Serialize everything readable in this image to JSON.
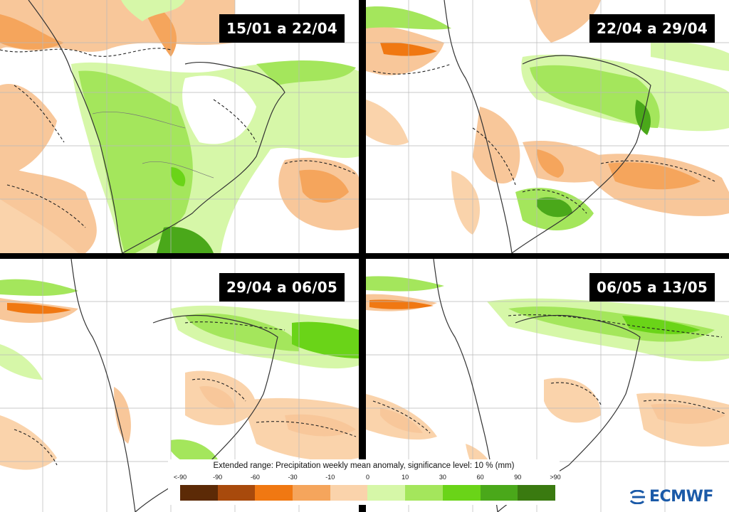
{
  "panels": [
    {
      "period": "15/01 a 22/04"
    },
    {
      "period": "22/04 a 29/04"
    },
    {
      "period": "29/04 a 06/05"
    },
    {
      "period": "06/05 a 13/05"
    }
  ],
  "legend": {
    "title": "Extended range: Precipitation weekly mean anomaly, significance level: 10 % (mm)",
    "ticks": [
      "<-90",
      "-90",
      "-60",
      "-30",
      "-10",
      "0",
      "10",
      "30",
      "60",
      "90",
      ">90"
    ],
    "colors": [
      "#5c2a06",
      "#a84a0c",
      "#f07812",
      "#f5a55c",
      "#fad3ab",
      "#d6f7a8",
      "#a4e65c",
      "#6ad418",
      "#4aa81a",
      "#3a7a10"
    ]
  },
  "logo": {
    "text": "ECMWF",
    "color": "#1b5aa8"
  }
}
